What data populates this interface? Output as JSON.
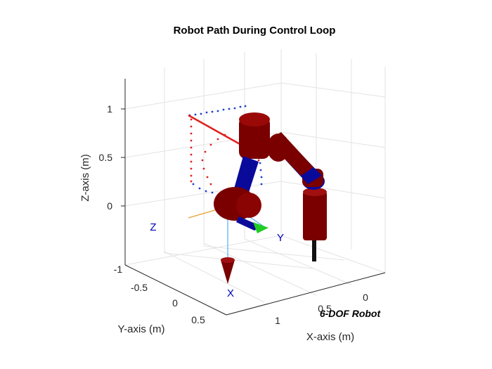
{
  "chart_data": {
    "type": "scatter",
    "title": "Robot Path During Control Loop",
    "xlabel": "X-axis (m)",
    "ylabel": "Y-axis (m)",
    "zlabel": "Z-axis (m)",
    "xticks": [
      "0",
      "0.5",
      "1"
    ],
    "yticks": [
      "-1",
      "-0.5",
      "0",
      "0.5"
    ],
    "zticks": [
      "0",
      "0.5",
      "1"
    ],
    "grid": true,
    "frame_labels": {
      "x": "X",
      "y": "Y",
      "z": "Z"
    },
    "robot_label": "6-DOF Robot",
    "colors": {
      "path_blue": "#1f3fd0",
      "path_red": "#e02020",
      "link_red": "#7a0000",
      "joint_blue": "#0a0a9a",
      "tool_green": "#22cc22",
      "frame_label": "#0000b8"
    }
  }
}
